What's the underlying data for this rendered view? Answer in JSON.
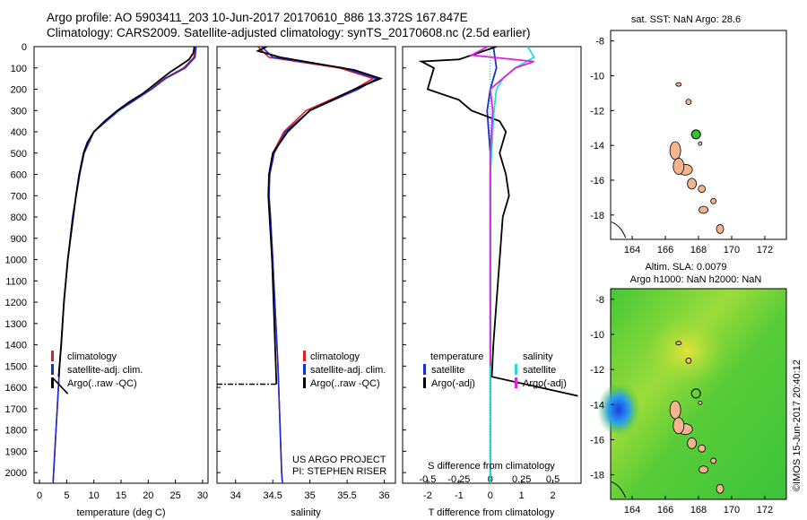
{
  "header": {
    "line1": "Argo profile: AO 5903411_203 10-Jun-2017 20170610_886 13.372S 167.847E",
    "line2": "Climatology: CARS2009. Satellite-adjusted climatology: synTS_20170608.nc (2.5d earlier)"
  },
  "colors": {
    "climatology": "#e02020",
    "satellite": "#1a2bd8",
    "argo": "#000000",
    "satellite_diff": "#22dde0",
    "argo_sal_diff": "#e020e0",
    "land": "#f4b48c",
    "float_marker": "#2ec42e"
  },
  "legend_profile": {
    "climatology": "climatology",
    "satellite": "satellite-adj. clim.",
    "argo": "Argo(..raw -QC)"
  },
  "legend_diff": {
    "temp_title": "temperature",
    "sal_title": "salinity",
    "satellite": "satellite",
    "argo": "Argo(-adj)"
  },
  "credits": {
    "project": "US ARGO PROJECT",
    "pi": "PI: STEPHEN RISER"
  },
  "maps": {
    "sst_title": "sat. SST: NaN Argo: 28.6",
    "sla_title1": "Altim. SLA: 0.0079",
    "sla_title2": "Argo h1000: NaN h2000: NaN",
    "stamp": "©IMOS 15-Jun-2017 20:40:12",
    "lat_ticks": [
      "-8",
      "-10",
      "-12",
      "-14",
      "-16",
      "-18"
    ],
    "lon_ticks": [
      "164",
      "166",
      "168",
      "170",
      "172"
    ]
  },
  "chart_data": [
    {
      "type": "line",
      "panel": "temperature",
      "title": "",
      "xlabel": "temperature (deg C)",
      "ylabel": "",
      "xlim": [
        -1,
        31
      ],
      "ylim": [
        2050,
        0
      ],
      "x_ticks": [
        "0",
        "5",
        "10",
        "15",
        "20",
        "25",
        "30"
      ],
      "y_ticks": [
        "0",
        "100",
        "200",
        "300",
        "400",
        "500",
        "600",
        "700",
        "800",
        "900",
        "1000",
        "1100",
        "1200",
        "1300",
        "1400",
        "1500",
        "1600",
        "1700",
        "1800",
        "1900",
        "2000"
      ],
      "legend": "bottom-left",
      "series": [
        {
          "name": "climatology",
          "depth": [
            0,
            50,
            100,
            150,
            200,
            300,
            400,
            500,
            600,
            800,
            1000,
            1200,
            1500,
            2000,
            2050
          ],
          "values": [
            28.6,
            28.4,
            26.5,
            23,
            20.5,
            14.5,
            10,
            8.2,
            7.4,
            6.1,
            5.2,
            4.5,
            3.7,
            2.6,
            2.5
          ]
        },
        {
          "name": "satellite-adj. clim.",
          "depth": [
            0,
            50,
            100,
            150,
            200,
            300,
            400,
            500,
            600,
            800,
            1000,
            1200,
            1500,
            2000,
            2050
          ],
          "values": [
            28.8,
            28.6,
            26.8,
            23.2,
            20.6,
            14.6,
            10,
            8.2,
            7.4,
            6.1,
            5.2,
            4.5,
            3.7,
            2.6,
            2.5
          ]
        },
        {
          "name": "Argo(..raw -QC)",
          "depth": [
            0,
            30,
            60,
            90,
            120,
            150,
            180,
            220,
            260,
            300,
            350,
            400,
            450,
            500,
            600,
            700,
            800,
            1000,
            1200,
            1400,
            1550
          ],
          "values": [
            28.5,
            28.3,
            27.5,
            25.8,
            24,
            22.5,
            21,
            19,
            16.5,
            14.3,
            12,
            10,
            8.8,
            8.1,
            7.3,
            6.7,
            6.2,
            5.2,
            4.5,
            4,
            3.5
          ]
        },
        {
          "name": "Argo spike",
          "depth": [
            1560,
            1630
          ],
          "values": [
            2.6,
            5.2
          ]
        }
      ]
    },
    {
      "type": "line",
      "panel": "salinity",
      "title": "",
      "xlabel": "salinity",
      "ylabel": "",
      "xlim": [
        33.75,
        36.15
      ],
      "ylim": [
        2050,
        0
      ],
      "x_ticks": [
        "34",
        "34.5",
        "35",
        "35.5",
        "36"
      ],
      "legend": "bottom-left",
      "series": [
        {
          "name": "climatology",
          "depth": [
            0,
            50,
            100,
            150,
            200,
            300,
            400,
            500,
            600,
            700,
            800,
            1000,
            1500,
            2000,
            2050
          ],
          "values": [
            34.3,
            34.45,
            35.4,
            35.85,
            35.6,
            34.95,
            34.65,
            34.5,
            34.45,
            34.45,
            34.47,
            34.5,
            34.57,
            34.62,
            34.63
          ]
        },
        {
          "name": "satellite-adj. clim.",
          "depth": [
            0,
            50,
            100,
            150,
            200,
            300,
            400,
            500,
            600,
            700,
            800,
            1000,
            1500,
            2000,
            2050
          ],
          "values": [
            34.35,
            34.5,
            35.45,
            35.9,
            35.65,
            35,
            34.67,
            34.52,
            34.46,
            34.45,
            34.47,
            34.5,
            34.57,
            34.62,
            34.63
          ]
        },
        {
          "name": "Argo(..raw -QC)",
          "depth": [
            0,
            20,
            50,
            80,
            110,
            150,
            200,
            250,
            300,
            400,
            500,
            600,
            700,
            1000,
            1585
          ],
          "values": [
            34.42,
            34.3,
            34.6,
            35.1,
            35.6,
            35.95,
            35.6,
            35.3,
            35,
            34.7,
            34.5,
            34.45,
            34.44,
            34.49,
            34.55
          ]
        },
        {
          "name": "Argo spike",
          "depth": [
            1585,
            1585
          ],
          "values": [
            33.75,
            34.55
          ]
        }
      ]
    },
    {
      "type": "line",
      "panel": "difference",
      "title": "",
      "xlabel": "T difference from climatology",
      "ylabel": "",
      "xlim": [
        -2.8,
        2.9
      ],
      "ylim": [
        2050,
        0
      ],
      "x_ticks": [
        "-2",
        "-1",
        "0",
        "1",
        "2"
      ],
      "x2label": "S difference from climatology",
      "x2_ticks": [
        "-0.5",
        "-0.25",
        "0",
        "0.25",
        "0.5"
      ],
      "legend": "bottom",
      "series": [
        {
          "name": "temperature satellite",
          "depth": [
            0,
            100,
            200,
            300,
            400,
            500,
            600,
            800,
            1000,
            1200,
            1500,
            1800,
            2000,
            2050
          ],
          "values": [
            0.1,
            0.2,
            0,
            -0.1,
            -0.05,
            0,
            0,
            0,
            0,
            0,
            0,
            0,
            0,
            0
          ]
        },
        {
          "name": "temperature Argo(-adj)",
          "depth": [
            0,
            60,
            70,
            100,
            150,
            200,
            250,
            300,
            350,
            400,
            450,
            500,
            600,
            700,
            800,
            1000,
            1200,
            1400,
            1550,
            1640
          ],
          "values": [
            0.2,
            -1,
            -2.2,
            -1.8,
            -1.9,
            -2,
            -1,
            -0.6,
            0.3,
            0.5,
            0.4,
            0.3,
            0.5,
            0.6,
            0.4,
            0.3,
            0.2,
            0.1,
            0.05,
            2.8
          ]
        },
        {
          "name": "salinity satellite",
          "depth": [
            0,
            50,
            100,
            150,
            200,
            300,
            400,
            600,
            800,
            1000,
            1500,
            2000,
            2050
          ],
          "values": [
            0.3,
            0.35,
            0.2,
            0.1,
            0.05,
            0.03,
            0.02,
            0,
            0,
            0,
            0,
            0,
            0
          ]
        },
        {
          "name": "salinity Argo(-adj)",
          "depth": [
            0,
            40,
            70,
            100,
            150,
            200,
            300,
            400,
            500,
            600,
            700,
            1000,
            1500
          ],
          "values": [
            -0.02,
            -0.15,
            0.35,
            0.2,
            0.1,
            0,
            0.02,
            0.01,
            0,
            0,
            0,
            0,
            0
          ]
        }
      ]
    },
    {
      "type": "scatter",
      "panel": "sst_map",
      "xlim": [
        162.7,
        173.3
      ],
      "ylim": [
        -19.4,
        -7.4
      ],
      "values": [
        {
          "name": "Argo float",
          "lon": 167.85,
          "lat": -13.37
        }
      ]
    },
    {
      "type": "heatmap",
      "panel": "sla_map",
      "xlim": [
        162.7,
        173.3
      ],
      "ylim": [
        -19.4,
        -7.4
      ],
      "values": [
        {
          "name": "Argo float",
          "lon": 167.85,
          "lat": -13.37
        }
      ]
    }
  ]
}
